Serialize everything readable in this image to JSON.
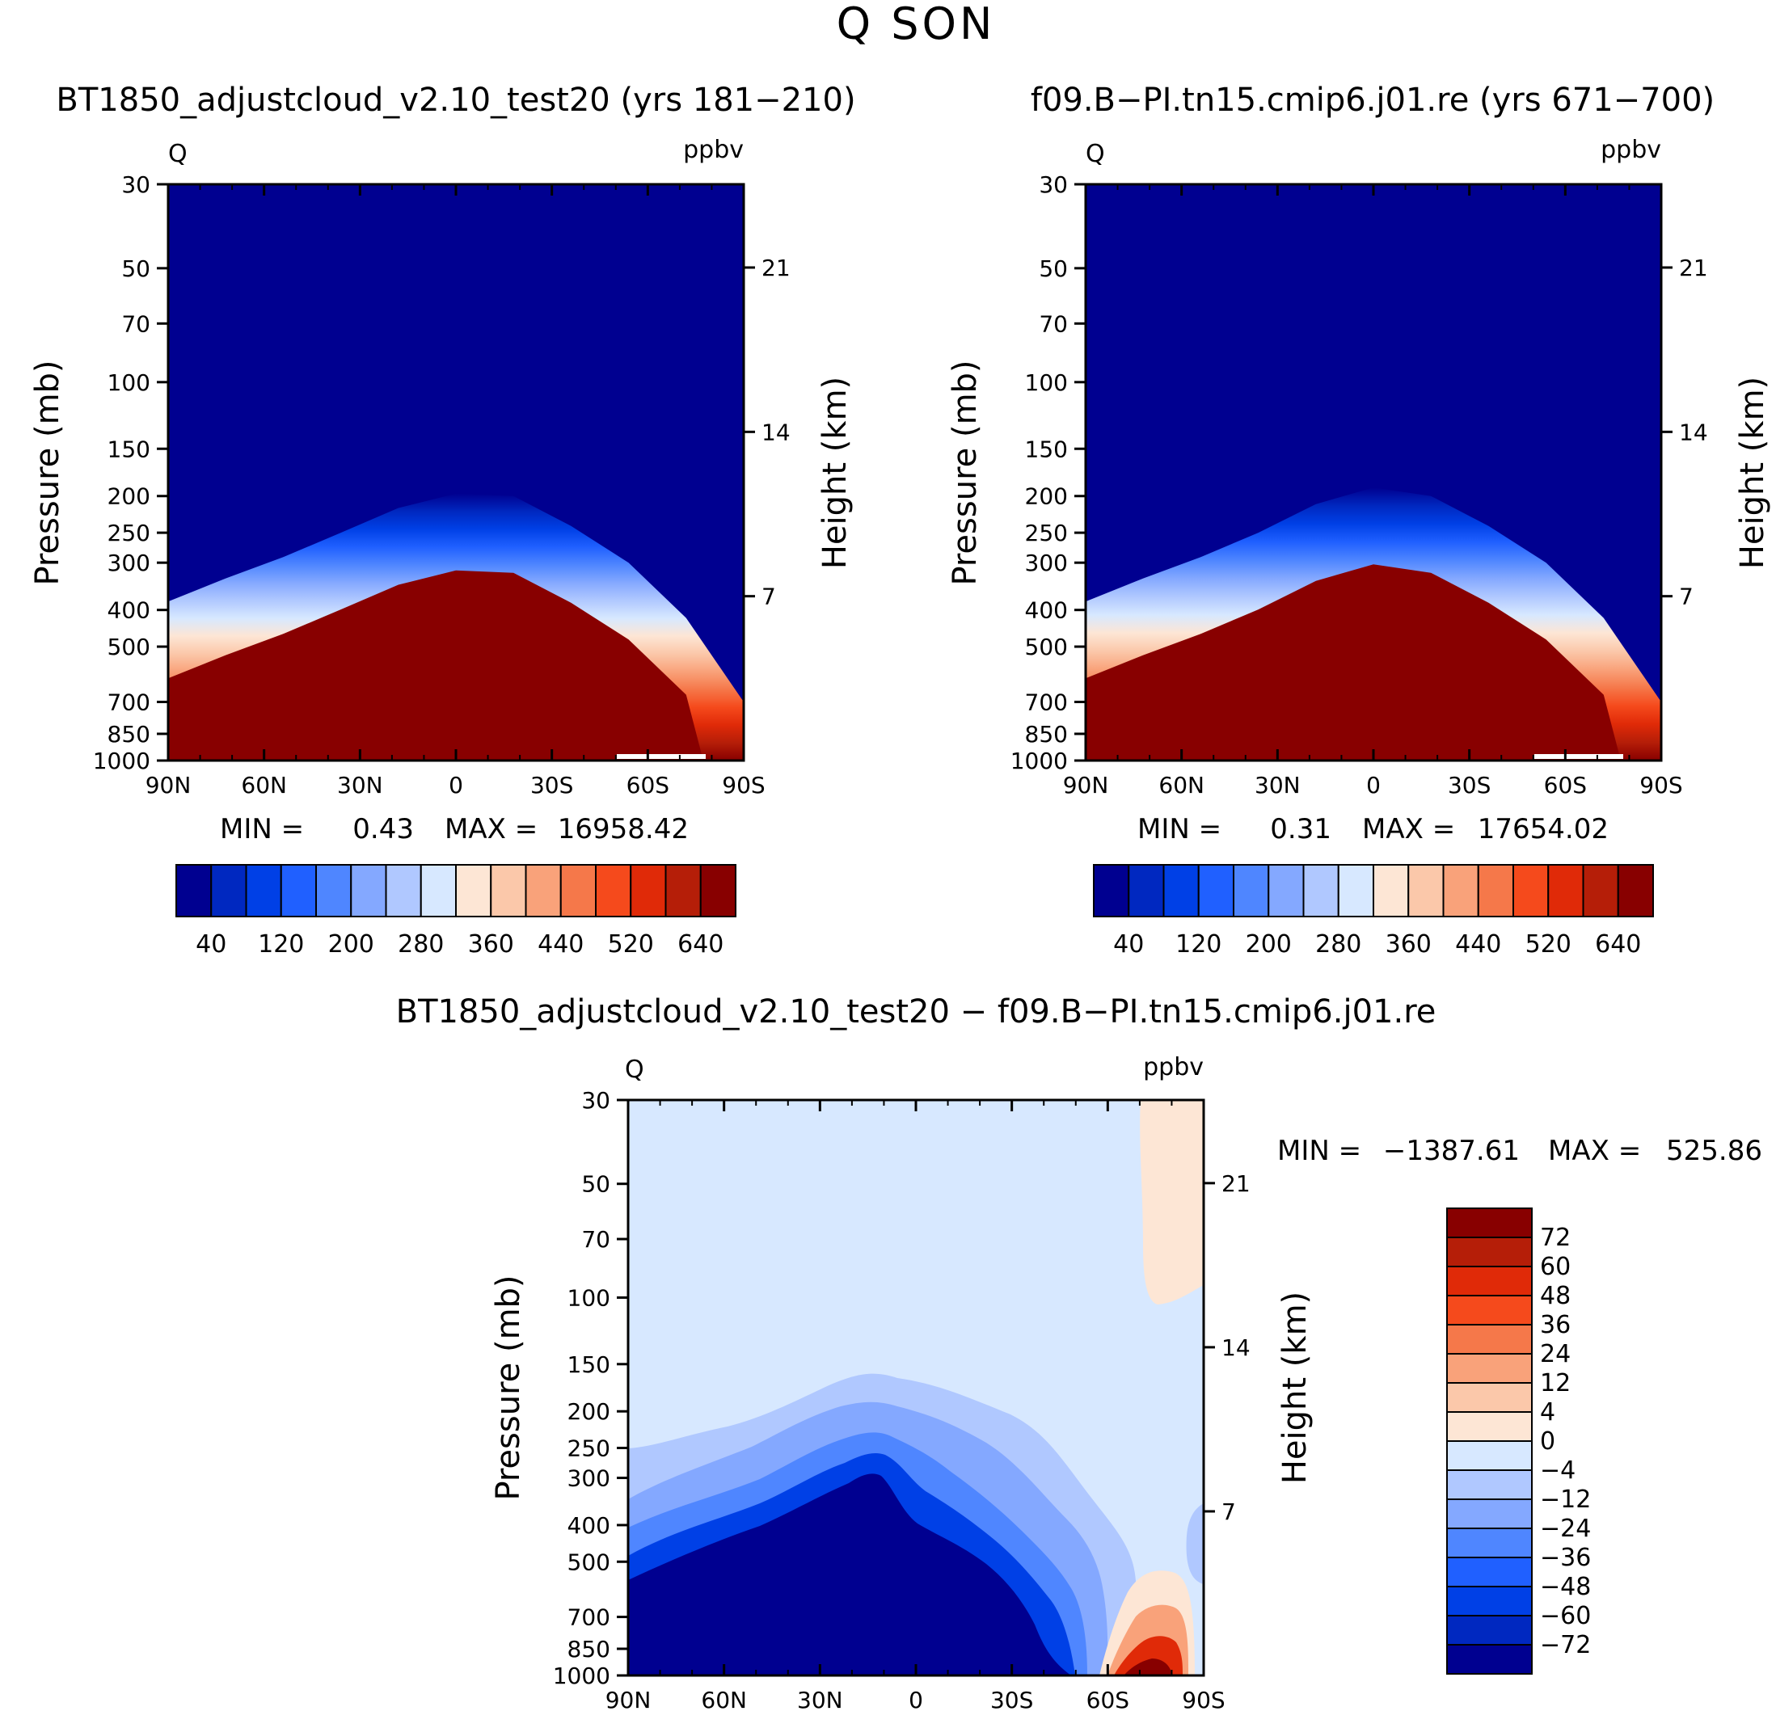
{
  "figure_title": "Q SON",
  "colors": {
    "abs_levels": [
      "#000090",
      "#0028c0",
      "#0040e6",
      "#2060ff",
      "#4f86ff",
      "#84a8ff",
      "#b0c8ff",
      "#d7e8ff",
      "#fde6d5",
      "#fbc8aa",
      "#f9a27a",
      "#f5784a",
      "#f54a1c",
      "#e02a08",
      "#b51e08",
      "#880000"
    ],
    "diff_levels": [
      "#000090",
      "#0028c0",
      "#0040e6",
      "#2060ff",
      "#4f86ff",
      "#84a8ff",
      "#b0c8ff",
      "#d7e8ff",
      "#fde6d5",
      "#fbc8aa",
      "#f9a27a",
      "#f5784a",
      "#f54a1c",
      "#e02a08",
      "#b51e08",
      "#880000"
    ]
  },
  "chart_data": [
    {
      "id": "panel1",
      "type": "contour",
      "title": "BT1850_adjustcloud_v2.10_test20 (yrs 181−210)",
      "left_label": "Q",
      "right_label": "ppbv",
      "ylabel": "Pressure (mb)",
      "ylabel_right": "Height (km)",
      "x_ticks": [
        "90N",
        "60N",
        "30N",
        "0",
        "30S",
        "60S",
        "90S"
      ],
      "xlim": [
        90,
        -90
      ],
      "y_ticks": [
        30,
        50,
        70,
        100,
        150,
        200,
        250,
        300,
        400,
        500,
        700,
        850,
        1000
      ],
      "ylim": [
        1000,
        30
      ],
      "height_ticks": [
        21,
        14,
        7
      ],
      "stats": {
        "min_label": "MIN =",
        "min": "0.43",
        "max_label": "MAX =",
        "max": "16958.42"
      },
      "colorbar_labels": [
        "40",
        "120",
        "200",
        "280",
        "360",
        "440",
        "520",
        "640"
      ],
      "boundary_p_n_to_s": [
        380,
        330,
        290,
        250,
        215,
        197,
        200,
        240,
        300,
        420,
        700
      ]
    },
    {
      "id": "panel2",
      "type": "contour",
      "title": "f09.B−PI.tn15.cmip6.j01.re (yrs 671−700)",
      "left_label": "Q",
      "right_label": "ppbv",
      "ylabel": "Pressure (mb)",
      "ylabel_right": "Height (km)",
      "x_ticks": [
        "90N",
        "60N",
        "30N",
        "0",
        "30S",
        "60S",
        "90S"
      ],
      "xlim": [
        90,
        -90
      ],
      "y_ticks": [
        30,
        50,
        70,
        100,
        150,
        200,
        250,
        300,
        400,
        500,
        700,
        850,
        1000
      ],
      "ylim": [
        1000,
        30
      ],
      "height_ticks": [
        21,
        14,
        7
      ],
      "stats": {
        "min_label": "MIN =",
        "min": "0.31",
        "max_label": "MAX =",
        "max": "17654.02"
      },
      "colorbar_labels": [
        "40",
        "120",
        "200",
        "280",
        "360",
        "440",
        "520",
        "640"
      ],
      "boundary_p_n_to_s": [
        380,
        330,
        290,
        250,
        210,
        190,
        200,
        240,
        300,
        420,
        700
      ]
    },
    {
      "id": "panel3",
      "type": "contour",
      "title": "BT1850_adjustcloud_v2.10_test20 − f09.B−PI.tn15.cmip6.j01.re",
      "left_label": "Q",
      "right_label": "ppbv",
      "ylabel": "Pressure (mb)",
      "ylabel_right": "Height (km)",
      "x_ticks": [
        "90N",
        "60N",
        "30N",
        "0",
        "30S",
        "60S",
        "90S"
      ],
      "xlim": [
        90,
        -90
      ],
      "y_ticks": [
        30,
        50,
        70,
        100,
        150,
        200,
        250,
        300,
        400,
        500,
        700,
        850,
        1000
      ],
      "ylim": [
        1000,
        30
      ],
      "height_ticks": [
        21,
        14,
        7
      ],
      "stats": {
        "min_label": "MIN =",
        "min": "−1387.61",
        "max_label": "MAX =",
        "max": "525.86"
      },
      "colorbar_labels": [
        "72",
        "60",
        "48",
        "36",
        "24",
        "12",
        "4",
        "0",
        "−4",
        "−12",
        "−24",
        "−36",
        "−48",
        "−60",
        "−72"
      ]
    }
  ]
}
